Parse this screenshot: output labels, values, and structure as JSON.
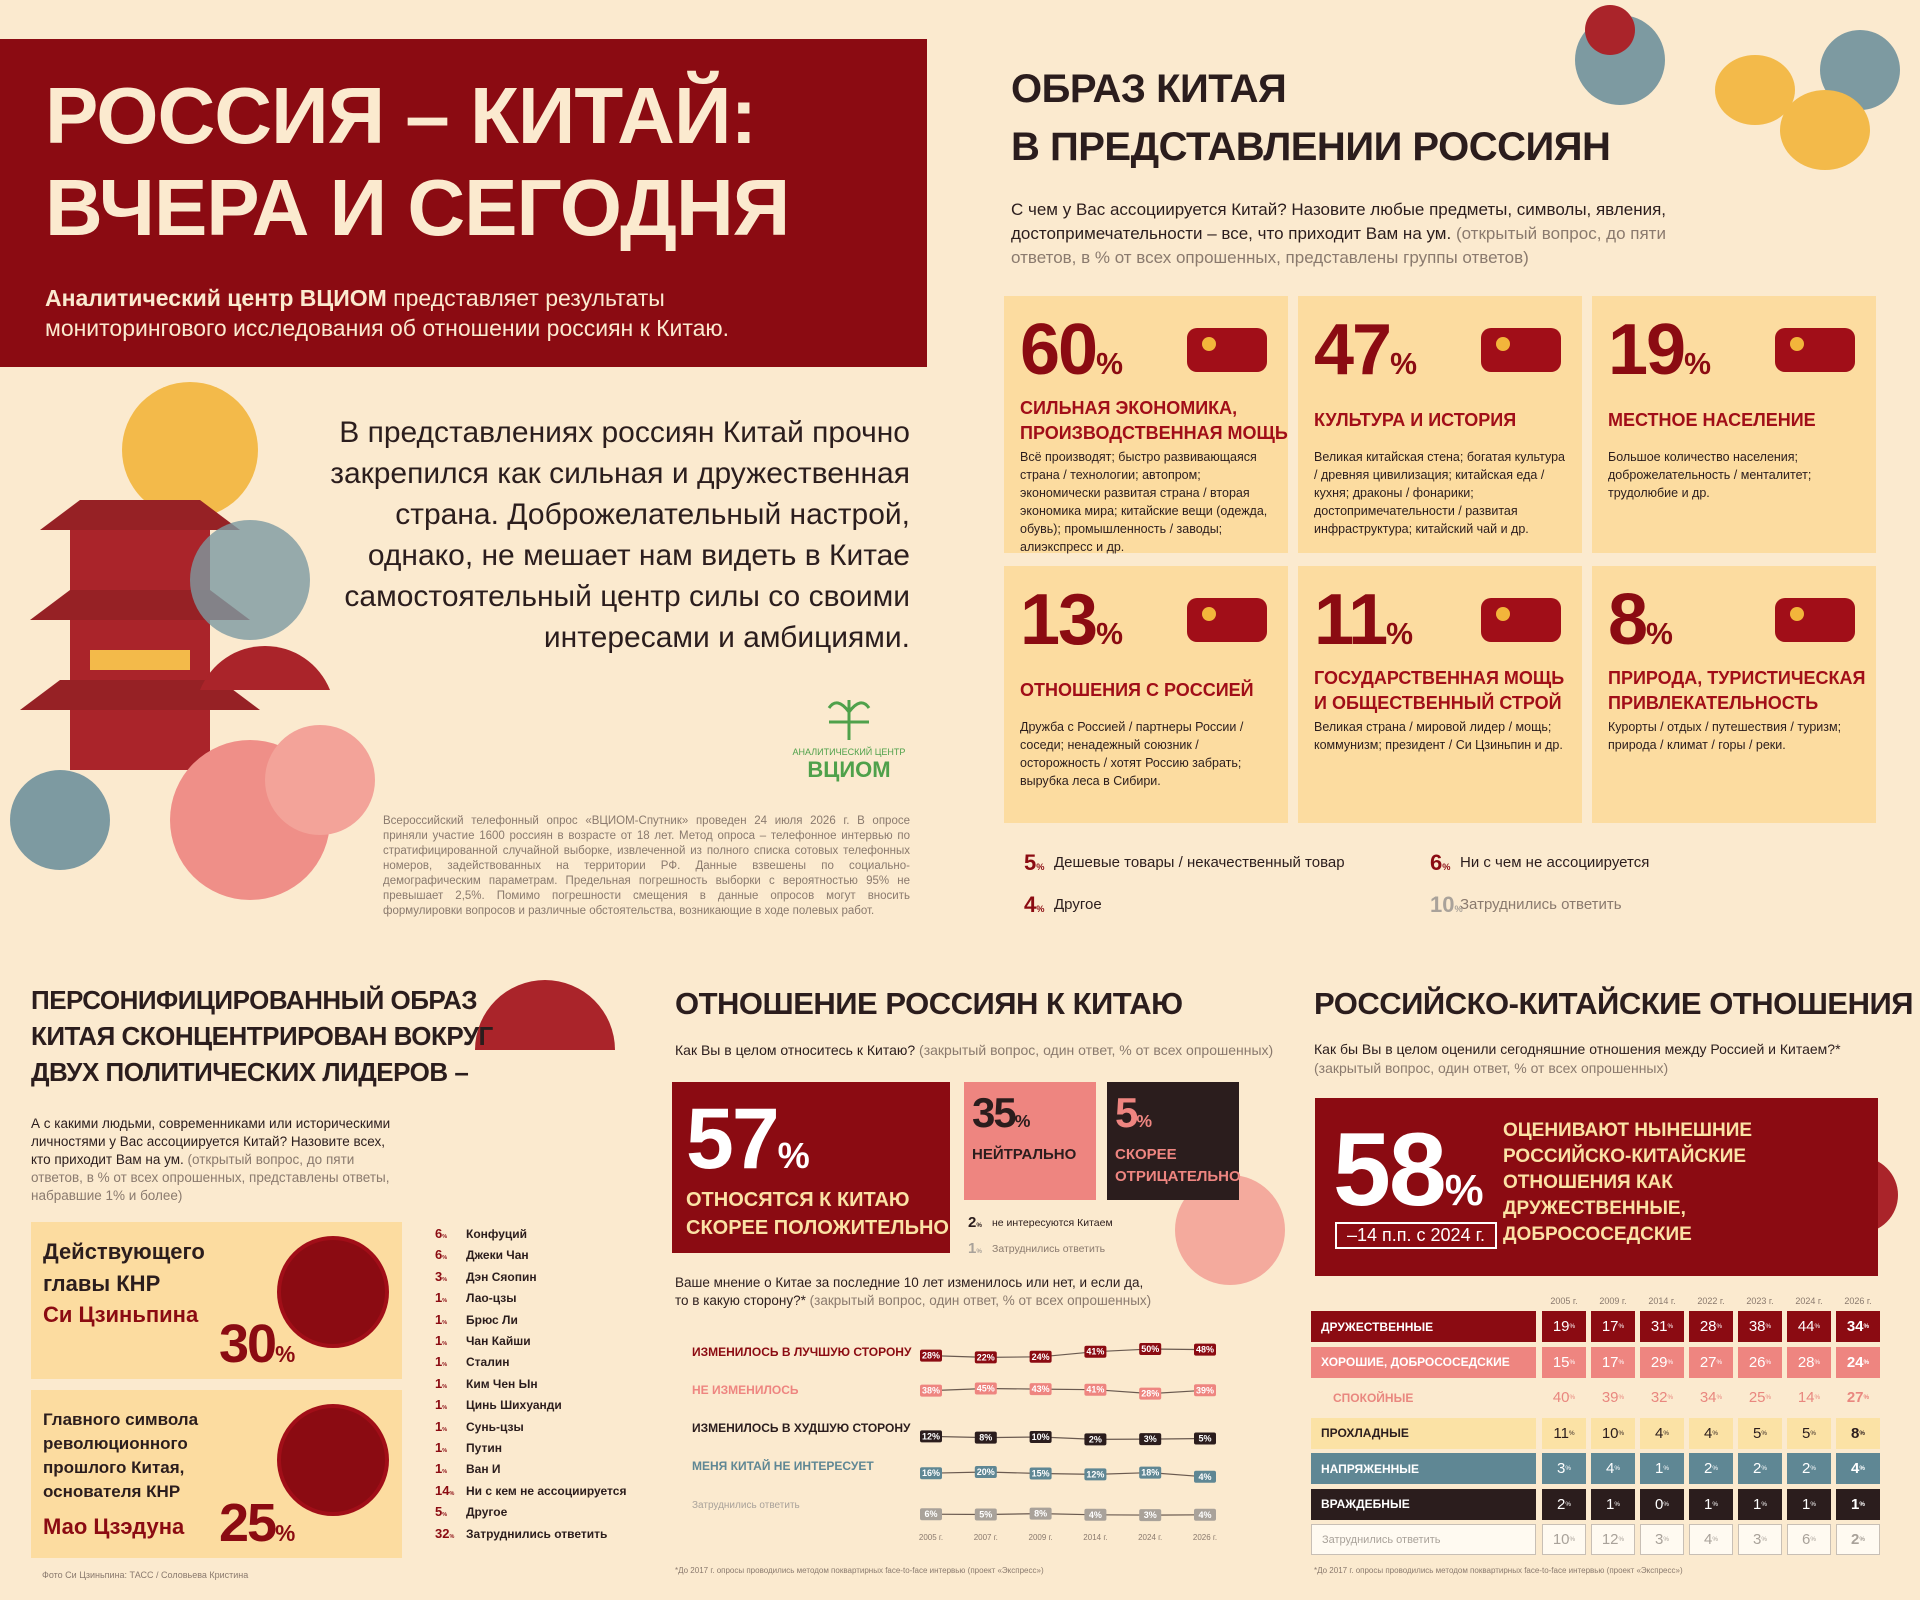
{
  "header": {
    "title": "РОССИЯ – КИТАЙ:\nВЧЕРА И СЕГОДНЯ",
    "org": "Аналитический центр ВЦИОМ",
    "intro": " представляет результаты\nмониторингового исследования об отношении россиян к Китаю."
  },
  "lead": "В представлениях россиян Китай прочно\nзакрепился как сильная и дружественная\nстрана. Доброжелательный настрой,\nоднако, не мешает нам видеть в Китае\nсамостоятельный центр силы со своими\nинтересами и амбициями.",
  "logo": {
    "line1": "АНАЛИТИЧЕСКИЙ ЦЕНТР",
    "line2": "ВЦИОМ"
  },
  "methodology": "Всероссийский телефонный опрос «ВЦИОМ-Спутник» проведен 24 июля 2026 г. В опросе приняли участие 1600 россиян в возрасте от 18 лет. Метод опроса – телефонное интервью по стратифицированной случайной выборке, извлеченной из полного списка сотовых телефонных номеров, задействованных на территории РФ. Данные взвешены по социально-демографическим параметрам. Предельная погрешность выборки с вероятностью 95% не превышает 2,5%. Помимо погрешности смещения в данные опросов могут вносить формулировки вопросов и различные обстоятельства, возникающие в ходе полевых работ.",
  "image": {
    "title": "ОБРАЗ КИТАЯ\nВ ПРЕДСТАВЛЕНИИ РОССИЯН",
    "question": "С чем у Вас ассоциируется Китай? Назовите любые предметы, символы, явления, достопримечательности – все, что приходит Вам на ум.",
    "note": " (открытый вопрос, до пяти ответов, в % от всех опрошенных, представлены группы ответов)",
    "cards": [
      {
        "value": "60%",
        "title": "СИЛЬНАЯ ЭКОНОМИКА,\nПРОИЗВОДСТВЕННАЯ МОЩЬ",
        "desc": "Всё производят; быстро развивающаяся страна / технологии; автопром; экономически развитая страна / вторая экономика мира; китайские вещи (одежда, обувь); промышленность / заводы; алиэкспресс и др."
      },
      {
        "value": "47%",
        "title": "КУЛЬТУРА И ИСТОРИЯ",
        "desc": "Великая китайская стена; богатая культура / древняя цивилизация; китайская еда / кухня; драконы / фонарики; достопримечательности / развитая инфраструктура; китайский чай и др."
      },
      {
        "value": "19%",
        "title": "МЕСТНОЕ НАСЕЛЕНИЕ",
        "desc": "Большое количество населения; доброжелательность / менталитет; трудолюбие и др."
      },
      {
        "value": "13%",
        "title": "ОТНОШЕНИЯ С РОССИЕЙ",
        "desc": "Дружба с Россией / партнеры России / соседи; ненадежный союзник / осторожность / хотят Россию забрать; вырубка леса в Сибири."
      },
      {
        "value": "11%",
        "title": "ГОСУДАРСТВЕННАЯ МОЩЬ\nИ ОБЩЕСТВЕННЫЙ СТРОЙ",
        "desc": "Великая страна / мировой лидер / мощь; коммунизм; президент / Си Цзиньпин и др."
      },
      {
        "value": "8%",
        "title": "ПРИРОДА, ТУРИСТИЧЕСКАЯ\nПРИВЛЕКАТЕЛЬНОСТЬ",
        "desc": "Курорты / отдых / путешествия / туризм; природа / климат / горы / реки."
      }
    ],
    "others": [
      {
        "value": "5%",
        "label": "Дешевые товары / некачественный товар"
      },
      {
        "value": "6%",
        "label": "Ни с чем не ассоциируется"
      },
      {
        "value": "4%",
        "label": "Другое"
      },
      {
        "value": "10%",
        "label": "Затруднились ответить"
      }
    ]
  },
  "leaders": {
    "title": "ПЕРСОНИФИЦИРОВАННЫЙ ОБРАЗ\nКИТАЯ СКОНЦЕНТРИРОВАН ВОКРУГ\nДВУХ ПОЛИТИЧЕСКИХ ЛИДЕРОВ –",
    "question": "А с какими людьми, современниками или историческими личностями у Вас ассоциируется Китай? Назовите всех, кто приходит Вам на ум.",
    "note": " (открытый вопрос, до пяти ответов, в % от всех опрошенных, представлены ответы, набравшие 1% и более)",
    "cards": [
      {
        "label": "Действующего\nглавы КНР",
        "name": "Си Цзиньпина",
        "value": "30%"
      },
      {
        "label": "Главного символа\nреволюционного\nпрошлого Китая,\nоснователя КНР",
        "name": "Мао Цзэдуна",
        "value": "25%"
      }
    ],
    "list": [
      {
        "value": "6%",
        "label": "Конфуций"
      },
      {
        "value": "6%",
        "label": "Джеки Чан"
      },
      {
        "value": "3%",
        "label": "Дэн Сяопин"
      },
      {
        "value": "1%",
        "label": "Лао-цзы"
      },
      {
        "value": "1%",
        "label": "Брюс Ли"
      },
      {
        "value": "1%",
        "label": "Чан Кайши"
      },
      {
        "value": "1%",
        "label": "Сталин"
      },
      {
        "value": "1%",
        "label": "Ким Чен Ын"
      },
      {
        "value": "1%",
        "label": "Цинь Шихуанди"
      },
      {
        "value": "1%",
        "label": "Сунь-цзы"
      },
      {
        "value": "1%",
        "label": "Путин"
      },
      {
        "value": "1%",
        "label": "Ван И"
      },
      {
        "value": "14%",
        "label": "Ни с кем не ассоциируется"
      },
      {
        "value": "5%",
        "label": "Другое"
      },
      {
        "value": "32%",
        "label": "Затруднились ответить"
      }
    ],
    "credit": "Фото Си Цзиньпина: ТАСС / Соловьева Кристина"
  },
  "attitude": {
    "title": "ОТНОШЕНИЕ РОССИЯН К КИТАЮ",
    "question": "Как Вы в целом относитесь к Китаю?",
    "note": " (закрытый вопрос, один ответ, % от всех опрошенных)",
    "main": {
      "value": "57%",
      "label": "ОТНОСЯТСЯ К КИТАЮ\nСКОРЕЕ ПОЛОЖИТЕЛЬНО"
    },
    "neutral": {
      "value": "35%",
      "label": "НЕЙТРАЛЬНО"
    },
    "negative": {
      "value": "5%",
      "label": "СКОРЕЕ\nОТРИЦАТЕЛЬНО"
    },
    "minor": [
      {
        "value": "2%",
        "label": "не интересуются Китаем"
      },
      {
        "value": "1%",
        "label": "Затруднились ответить"
      }
    ],
    "trend": {
      "type": "line",
      "question": "Ваше мнение о Китае за последние 10 лет изменилось или нет, и если да, то в какую сторону?*",
      "note": " (закрытый вопрос, один ответ, % от всех опрошенных)",
      "categories": [
        "2005 г.",
        "2007 г.",
        "2009 г.",
        "2014 г.",
        "2024 г.",
        "2026 г."
      ],
      "series": [
        {
          "name": "ИЗМЕНИЛОСЬ В ЛУЧШУЮ СТОРОНУ",
          "color": "#8b0b12",
          "values": [
            28,
            22,
            24,
            41,
            50,
            48
          ],
          "value_labels": [
            "28%",
            "22%",
            "24%",
            "41%",
            "50%",
            "48%"
          ]
        },
        {
          "name": "НЕ ИЗМЕНИЛОСЬ",
          "color": "#ee8580",
          "values": [
            38,
            45,
            43,
            41,
            28,
            39
          ],
          "value_labels": [
            "38%",
            "45%",
            "43%",
            "41%",
            "28%",
            "39%"
          ]
        },
        {
          "name": "ИЗМЕНИЛОСЬ В ХУДШУЮ СТОРОНУ",
          "color": "#2b1d1d",
          "values": [
            12,
            8,
            10,
            2,
            3,
            5
          ],
          "value_labels": [
            "12%",
            "8%",
            "10%",
            "2%",
            "3%",
            "5%"
          ]
        },
        {
          "name": "МЕНЯ КИТАЙ НЕ ИНТЕРЕСУЕТ",
          "color": "#5f8794",
          "values": [
            16,
            20,
            15,
            12,
            18,
            4
          ],
          "value_labels": [
            "16%",
            "20%",
            "15%",
            "12%",
            "18%",
            "4%"
          ]
        },
        {
          "name": "Затруднились ответить",
          "color": "#a9a29a",
          "values": [
            6,
            5,
            8,
            4,
            3,
            4
          ],
          "value_labels": [
            "6%",
            "5%",
            "8%",
            "4%",
            "3%",
            "4%"
          ]
        }
      ],
      "footnote": "*До 2017 г. опросы проводились методом поквартирных face-to-face интервью (проект «Экспресс»)"
    }
  },
  "relations": {
    "title": "РОССИЙСКО-КИТАЙСКИЕ ОТНОШЕНИЯ",
    "question": "Как бы Вы в целом оценили сегодняшние отношения между Россией и Китаем?*",
    "note": "(закрытый вопрос, один ответ, % от всех опрошенных)",
    "main": {
      "value": "58%",
      "change": "–14 п.п. с 2024 г.",
      "label": "ОЦЕНИВАЮТ НЫНЕШНИЕ\nРОССИЙСКО-КИТАЙСКИЕ\nОТНОШЕНИЯ КАК\nДРУЖЕСТВЕННЫЕ,\nДОБРОСОСЕДСКИЕ"
    },
    "table": {
      "columns": [
        "2005 г.",
        "2009 г.",
        "2014 г.",
        "2022 г.",
        "2023 г.",
        "2024 г.",
        "2026 г."
      ],
      "rows": [
        {
          "label": "ДРУЖЕСТВЕННЫЕ",
          "values": [
            "19%",
            "17%",
            "31%",
            "28%",
            "38%",
            "44%",
            "34%"
          ]
        },
        {
          "label": "ХОРОШИЕ, ДОБРОСОСЕДСКИЕ",
          "values": [
            "15%",
            "17%",
            "29%",
            "27%",
            "26%",
            "28%",
            "24%"
          ]
        },
        {
          "label": "СПОКОЙНЫЕ",
          "values": [
            "40%",
            "39%",
            "32%",
            "34%",
            "25%",
            "14%",
            "27%"
          ]
        },
        {
          "label": "ПРОХЛАДНЫЕ",
          "values": [
            "11%",
            "10%",
            "4%",
            "4%",
            "5%",
            "5%",
            "8%"
          ]
        },
        {
          "label": "НАПРЯЖЕННЫЕ",
          "values": [
            "3%",
            "4%",
            "1%",
            "2%",
            "2%",
            "2%",
            "4%"
          ]
        },
        {
          "label": "ВРАЖДЕБНЫЕ",
          "values": [
            "2%",
            "1%",
            "0%",
            "1%",
            "1%",
            "1%",
            "1%"
          ]
        },
        {
          "label": "Затруднились ответить",
          "values": [
            "10%",
            "12%",
            "3%",
            "4%",
            "3%",
            "6%",
            "2%"
          ]
        }
      ]
    },
    "footnote": "*До 2017 г. опросы проводились методом поквартирных face-to-face интервью (проект «Экспресс»)"
  }
}
